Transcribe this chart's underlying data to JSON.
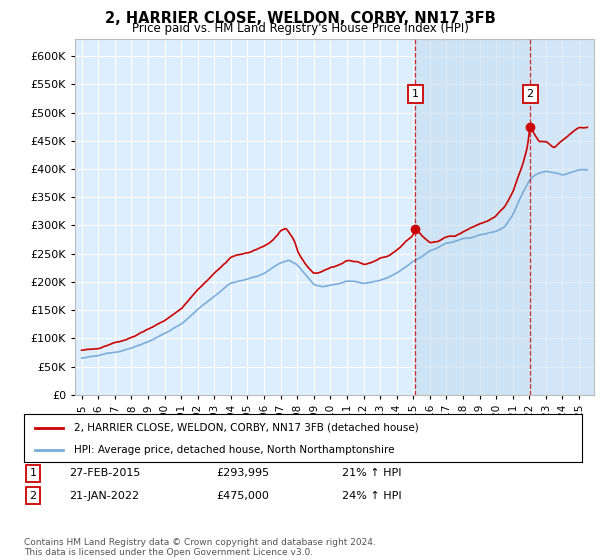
{
  "title": "2, HARRIER CLOSE, WELDON, CORBY, NN17 3FB",
  "subtitle": "Price paid vs. HM Land Registry's House Price Index (HPI)",
  "legend_line1": "2, HARRIER CLOSE, WELDON, CORBY, NN17 3FB (detached house)",
  "legend_line2": "HPI: Average price, detached house, North Northamptonshire",
  "annotation1_label": "1",
  "annotation1_date": "27-FEB-2015",
  "annotation1_price": "£293,995",
  "annotation1_hpi": "21% ↑ HPI",
  "annotation2_label": "2",
  "annotation2_date": "21-JAN-2022",
  "annotation2_price": "£475,000",
  "annotation2_hpi": "24% ↑ HPI",
  "footer": "Contains HM Land Registry data © Crown copyright and database right 2024.\nThis data is licensed under the Open Government Licence v3.0.",
  "red_color": "#cc0000",
  "blue_color": "#7aadda",
  "blue_fill_color": "#d0e8f8",
  "bg_plot_color": "#ddeeff",
  "grid_color": "#ffffff",
  "annotation_box_color": "#cc0000",
  "ylim_min": 0,
  "ylim_max": 630000,
  "yticks": [
    0,
    50000,
    100000,
    150000,
    200000,
    250000,
    300000,
    350000,
    400000,
    450000,
    500000,
    550000,
    600000
  ],
  "purchase1_x": 2015.12,
  "purchase1_y": 293995,
  "purchase2_x": 2022.05,
  "purchase2_y": 475000,
  "xmin": 1994.6,
  "xmax": 2025.9
}
